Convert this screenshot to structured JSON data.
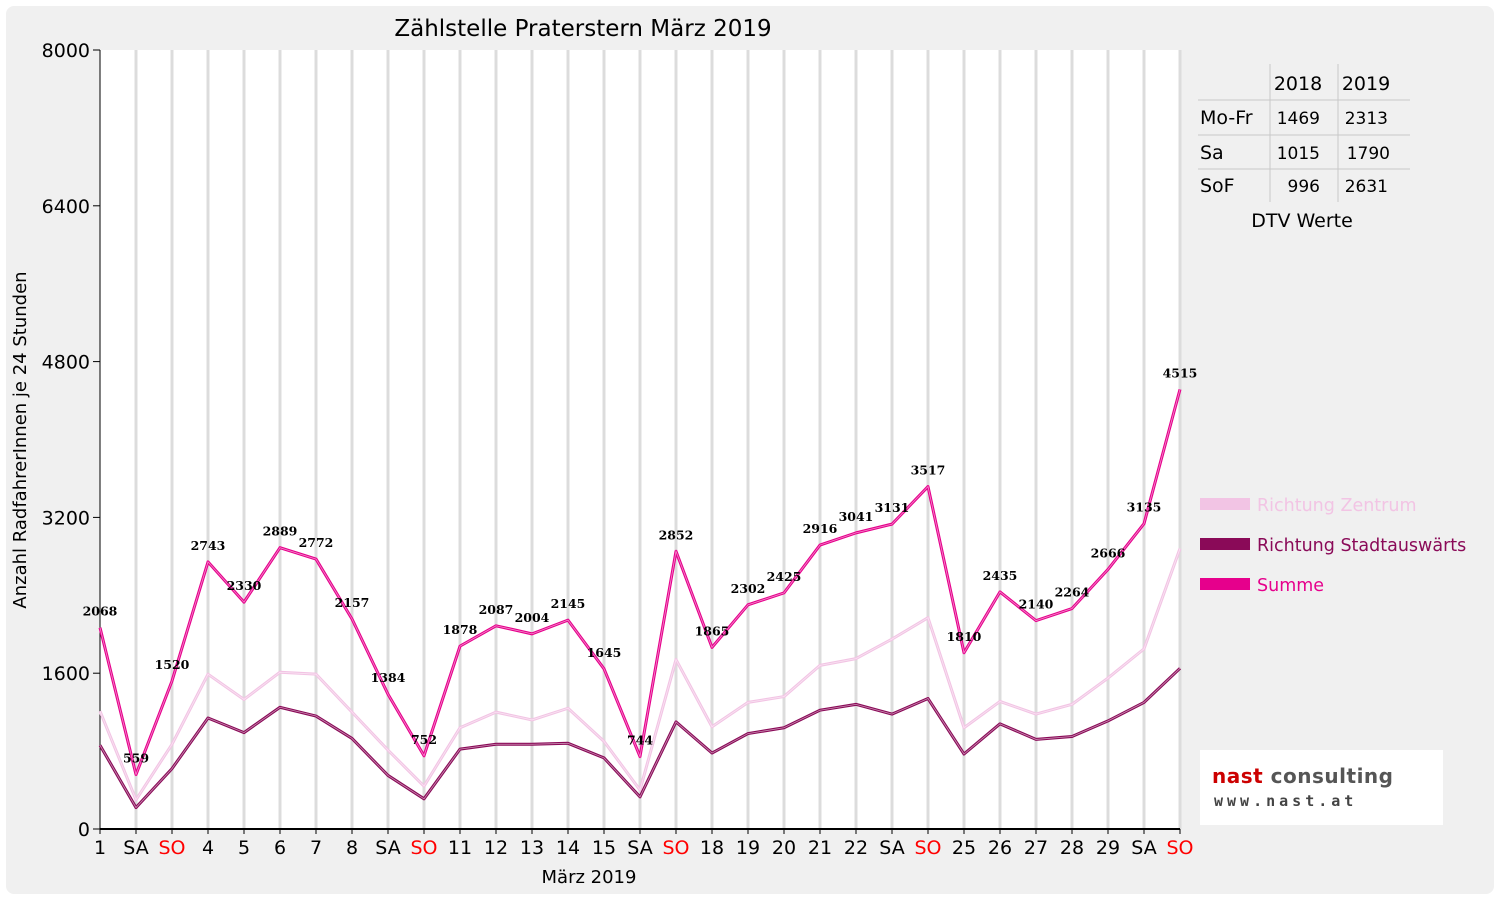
{
  "chart_data": {
    "type": "line",
    "title": "Zählstelle Praterstern März 2019",
    "xlabel": "März 2019",
    "ylabel": "Anzahl RadfahrerInnen je 24 Stunden",
    "ylim": [
      0,
      8000
    ],
    "yticks": [
      0,
      1600,
      3200,
      4800,
      6400,
      8000
    ],
    "grid": true,
    "legend_position": "right",
    "categories": [
      "1",
      "SA",
      "SO",
      "4",
      "5",
      "6",
      "7",
      "8",
      "SA",
      "SO",
      "11",
      "12",
      "13",
      "14",
      "15",
      "SA",
      "SO",
      "18",
      "19",
      "20",
      "21",
      "22",
      "SA",
      "SO",
      "25",
      "26",
      "27",
      "28",
      "29",
      "SA",
      "SO"
    ],
    "weekend_tick_color": "#ff0000",
    "series": [
      {
        "name": "Richtung Zentrum",
        "color": "#f2c4e4",
        "values": [
          1210,
          300,
          870,
          1590,
          1330,
          1610,
          1590,
          1200,
          810,
          440,
          1040,
          1200,
          1120,
          1240,
          900,
          400,
          1740,
          1050,
          1300,
          1360,
          1680,
          1750,
          1950,
          2170,
          1040,
          1310,
          1180,
          1280,
          1550,
          1850,
          2880
        ]
      },
      {
        "name": "Richtung Stadtauswärts",
        "color": "#8a0a58",
        "values": [
          860,
          220,
          620,
          1140,
          990,
          1250,
          1160,
          930,
          550,
          310,
          820,
          870,
          870,
          880,
          730,
          330,
          1100,
          780,
          980,
          1040,
          1220,
          1280,
          1180,
          1340,
          770,
          1080,
          920,
          950,
          1110,
          1300,
          1650
        ]
      },
      {
        "name": "Summe",
        "color": "#e6008c",
        "values": [
          2068,
          559,
          1520,
          2743,
          2330,
          2889,
          2772,
          2157,
          1384,
          752,
          1878,
          2087,
          2004,
          2145,
          1645,
          744,
          2852,
          1865,
          2302,
          2425,
          2916,
          3041,
          3131,
          3517,
          1810,
          2435,
          2140,
          2264,
          2666,
          3135,
          4515
        ]
      }
    ],
    "data_labels": [
      "2068",
      "559",
      "1520",
      "2743",
      "2330",
      "2889",
      "2772",
      "2157",
      "1384",
      "752",
      "1878",
      "2087",
      "2004",
      "2145",
      "1645",
      "744",
      "2852",
      "1865",
      "2302",
      "2425",
      "2916",
      "3041",
      "3131",
      "3517",
      "1810",
      "2435",
      "2140",
      "2264",
      "2666",
      "3135",
      "4515"
    ]
  },
  "dtv_table": {
    "col_headers": [
      "2018",
      "2019"
    ],
    "rows": [
      {
        "label": "Mo-Fr",
        "v2018": "1469",
        "v2019": "2313"
      },
      {
        "label": "Sa",
        "v2018": "1015",
        "v2019": "1790"
      },
      {
        "label": "SoF",
        "v2018": "996",
        "v2019": "2631"
      }
    ],
    "caption": "DTV Werte"
  },
  "logo": {
    "name_part1": "nast ",
    "name_part2": "consulting",
    "url": "www.nast.at"
  }
}
